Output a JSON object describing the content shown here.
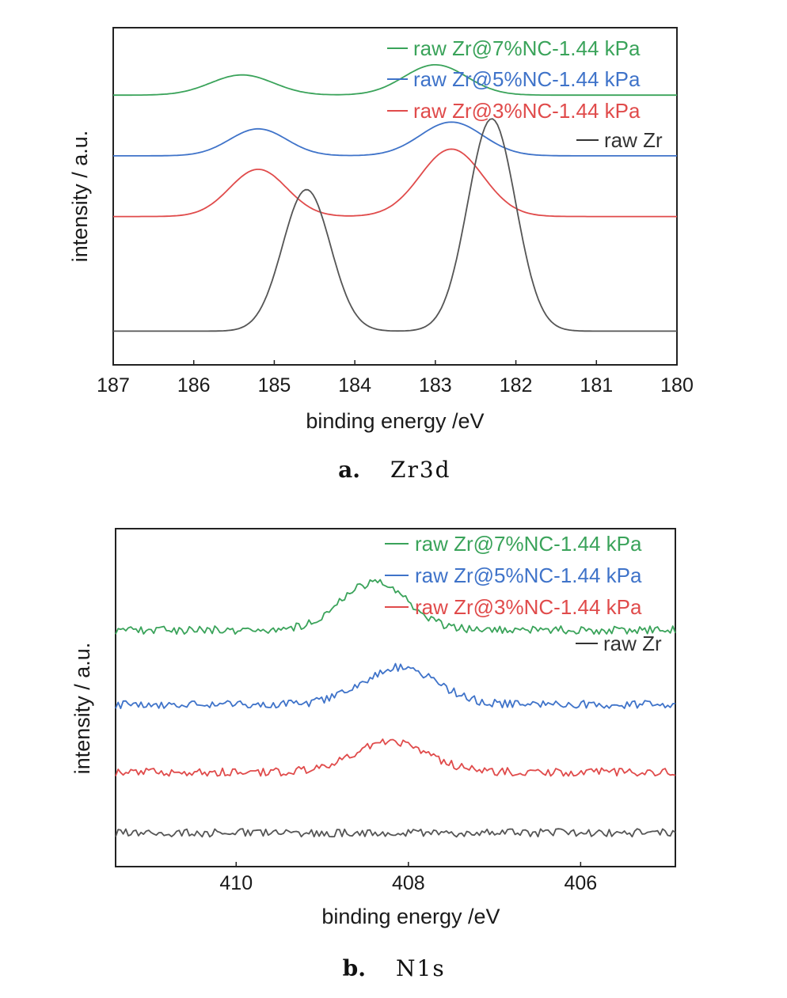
{
  "colors": {
    "green": "#3aa35a",
    "blue": "#3f73c9",
    "red": "#e04b4b",
    "black": "#555555"
  },
  "chart_data": [
    {
      "type": "line",
      "caption_letter": "a.",
      "caption_text": "Zr3d",
      "xlabel": "binding energy /eV",
      "ylabel": "intensity / a.u.",
      "xlim": [
        187,
        180
      ],
      "x_reversed": true,
      "y_ticks_shown": false,
      "xticks": [
        "187",
        "186",
        "185",
        "184",
        "183",
        "182",
        "181",
        "180"
      ],
      "legend_position": "top-right",
      "legend": [
        {
          "label": "raw Zr@7%NC-1.44 kPa",
          "color": "#3aa35a"
        },
        {
          "label": "raw Zr@5%NC-1.44 kPa",
          "color": "#3f73c9"
        },
        {
          "label": "raw Zr@3%NC-1.44 kPa",
          "color": "#e04b4b"
        },
        {
          "label": "raw Zr",
          "color": "#333333"
        }
      ],
      "series": [
        {
          "name": "raw Zr@7%NC-1.44 kPa",
          "color": "#3aa35a",
          "baseline": 0.8,
          "peaks": [
            {
              "center": 185.4,
              "height": 0.06,
              "width": 0.55
            },
            {
              "center": 183.0,
              "height": 0.09,
              "width": 0.55
            }
          ]
        },
        {
          "name": "raw Zr@5%NC-1.44 kPa",
          "color": "#3f73c9",
          "baseline": 0.62,
          "peaks": [
            {
              "center": 185.2,
              "height": 0.08,
              "width": 0.5
            },
            {
              "center": 182.8,
              "height": 0.1,
              "width": 0.55
            }
          ]
        },
        {
          "name": "raw Zr@3%NC-1.44 kPa",
          "color": "#e04b4b",
          "baseline": 0.44,
          "peaks": [
            {
              "center": 185.2,
              "height": 0.14,
              "width": 0.5
            },
            {
              "center": 182.8,
              "height": 0.2,
              "width": 0.55
            }
          ]
        },
        {
          "name": "raw Zr",
          "color": "#555555",
          "baseline": 0.1,
          "peaks": [
            {
              "center": 184.6,
              "height": 0.42,
              "width": 0.42
            },
            {
              "center": 182.3,
              "height": 0.63,
              "width": 0.42
            }
          ]
        }
      ],
      "ylim": [
        0,
        1
      ]
    },
    {
      "type": "line",
      "caption_letter": "b.",
      "caption_text": "N1s",
      "xlabel": "binding energy /eV",
      "ylabel": "intensity / a.u.",
      "xlim": [
        411.4,
        404.9
      ],
      "x_reversed": true,
      "y_ticks_shown": false,
      "xticks": [
        "410",
        "408",
        "406"
      ],
      "xtick_values": [
        410,
        408,
        406
      ],
      "legend_position": "top-right",
      "legend": [
        {
          "label": "raw Zr@7%NC-1.44 kPa",
          "color": "#3aa35a"
        },
        {
          "label": "raw Zr@5%NC-1.44 kPa",
          "color": "#3f73c9"
        },
        {
          "label": "raw Zr@3%NC-1.44 kPa",
          "color": "#e04b4b"
        },
        {
          "label": "raw Zr",
          "color": "#333333"
        }
      ],
      "series": [
        {
          "name": "raw Zr@7%NC-1.44 kPa",
          "color": "#3aa35a",
          "baseline": 0.7,
          "noise": 0.012,
          "peaks": [
            {
              "center": 408.4,
              "height": 0.14,
              "width": 0.55
            }
          ]
        },
        {
          "name": "raw Zr@5%NC-1.44 kPa",
          "color": "#3f73c9",
          "baseline": 0.48,
          "noise": 0.012,
          "peaks": [
            {
              "center": 408.1,
              "height": 0.11,
              "width": 0.6
            }
          ]
        },
        {
          "name": "raw Zr@3%NC-1.44 kPa",
          "color": "#e04b4b",
          "baseline": 0.28,
          "noise": 0.012,
          "peaks": [
            {
              "center": 408.2,
              "height": 0.09,
              "width": 0.6
            }
          ]
        },
        {
          "name": "raw Zr",
          "color": "#555555",
          "baseline": 0.1,
          "noise": 0.012,
          "peaks": []
        }
      ],
      "ylim": [
        0,
        1
      ]
    }
  ]
}
